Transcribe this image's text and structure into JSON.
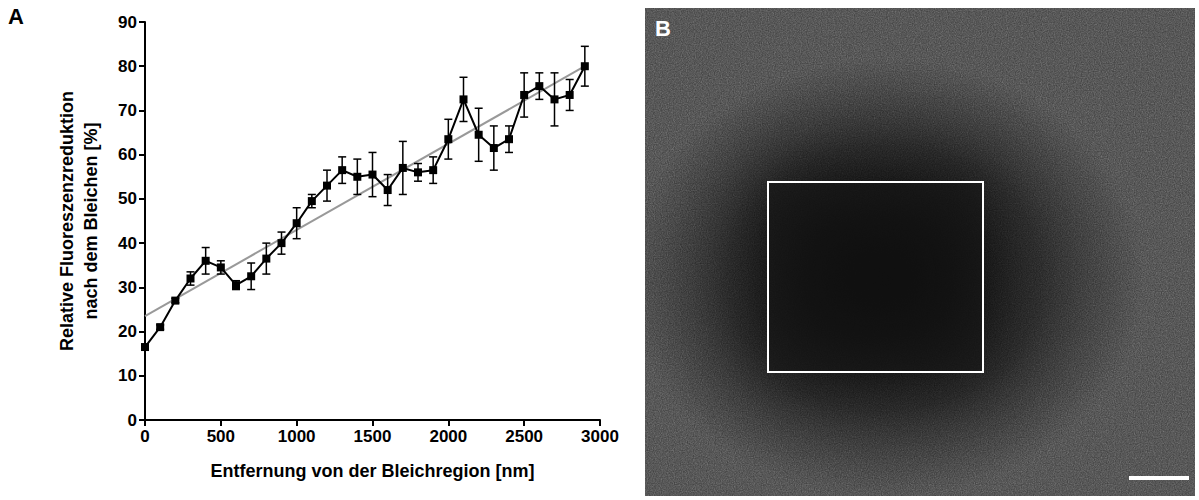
{
  "chart_data": {
    "type": "line",
    "panel_label": "A",
    "x_label": "Entfernung von der Bleichregion [nm]",
    "y_label": "Relative Fluoreszenzreduktion\nnach dem Bleichen [%]",
    "x": [
      0,
      100,
      200,
      300,
      400,
      500,
      600,
      700,
      800,
      900,
      1000,
      1100,
      1200,
      1300,
      1400,
      1500,
      1600,
      1700,
      1800,
      1900,
      2000,
      2100,
      2200,
      2300,
      2400,
      2500,
      2600,
      2700,
      2800,
      2900
    ],
    "values": [
      16.5,
      21,
      27,
      32,
      36,
      34.5,
      30.5,
      32.5,
      36.5,
      40,
      44.5,
      49.5,
      53,
      56.5,
      55,
      55.5,
      52,
      57,
      56,
      56.5,
      63.5,
      72.5,
      64.5,
      61.5,
      63.5,
      73.5,
      75.5,
      72.5,
      73.5,
      80
    ],
    "errors": [
      0.5,
      0.5,
      0.5,
      1.5,
      3,
      1.5,
      1,
      3,
      3.5,
      2.5,
      3.5,
      1.5,
      3.5,
      3,
      4,
      5,
      3.5,
      6,
      2,
      3,
      4.5,
      5,
      6,
      5,
      3,
      5,
      3,
      6,
      3.5,
      4.5
    ],
    "color": "#000000",
    "marker": "square",
    "fit": {
      "x": [
        0,
        2900
      ],
      "values": [
        23.5,
        80
      ],
      "color": "#999999"
    },
    "xlim": [
      0,
      3000
    ],
    "xticks": [
      0,
      500,
      1000,
      1500,
      2000,
      2500,
      3000
    ],
    "ylim": [
      0,
      90
    ],
    "yticks": [
      0,
      10,
      20,
      30,
      40,
      50,
      60,
      70,
      80,
      90
    ],
    "grid": false
  },
  "image": {
    "panel_label": "B"
  }
}
